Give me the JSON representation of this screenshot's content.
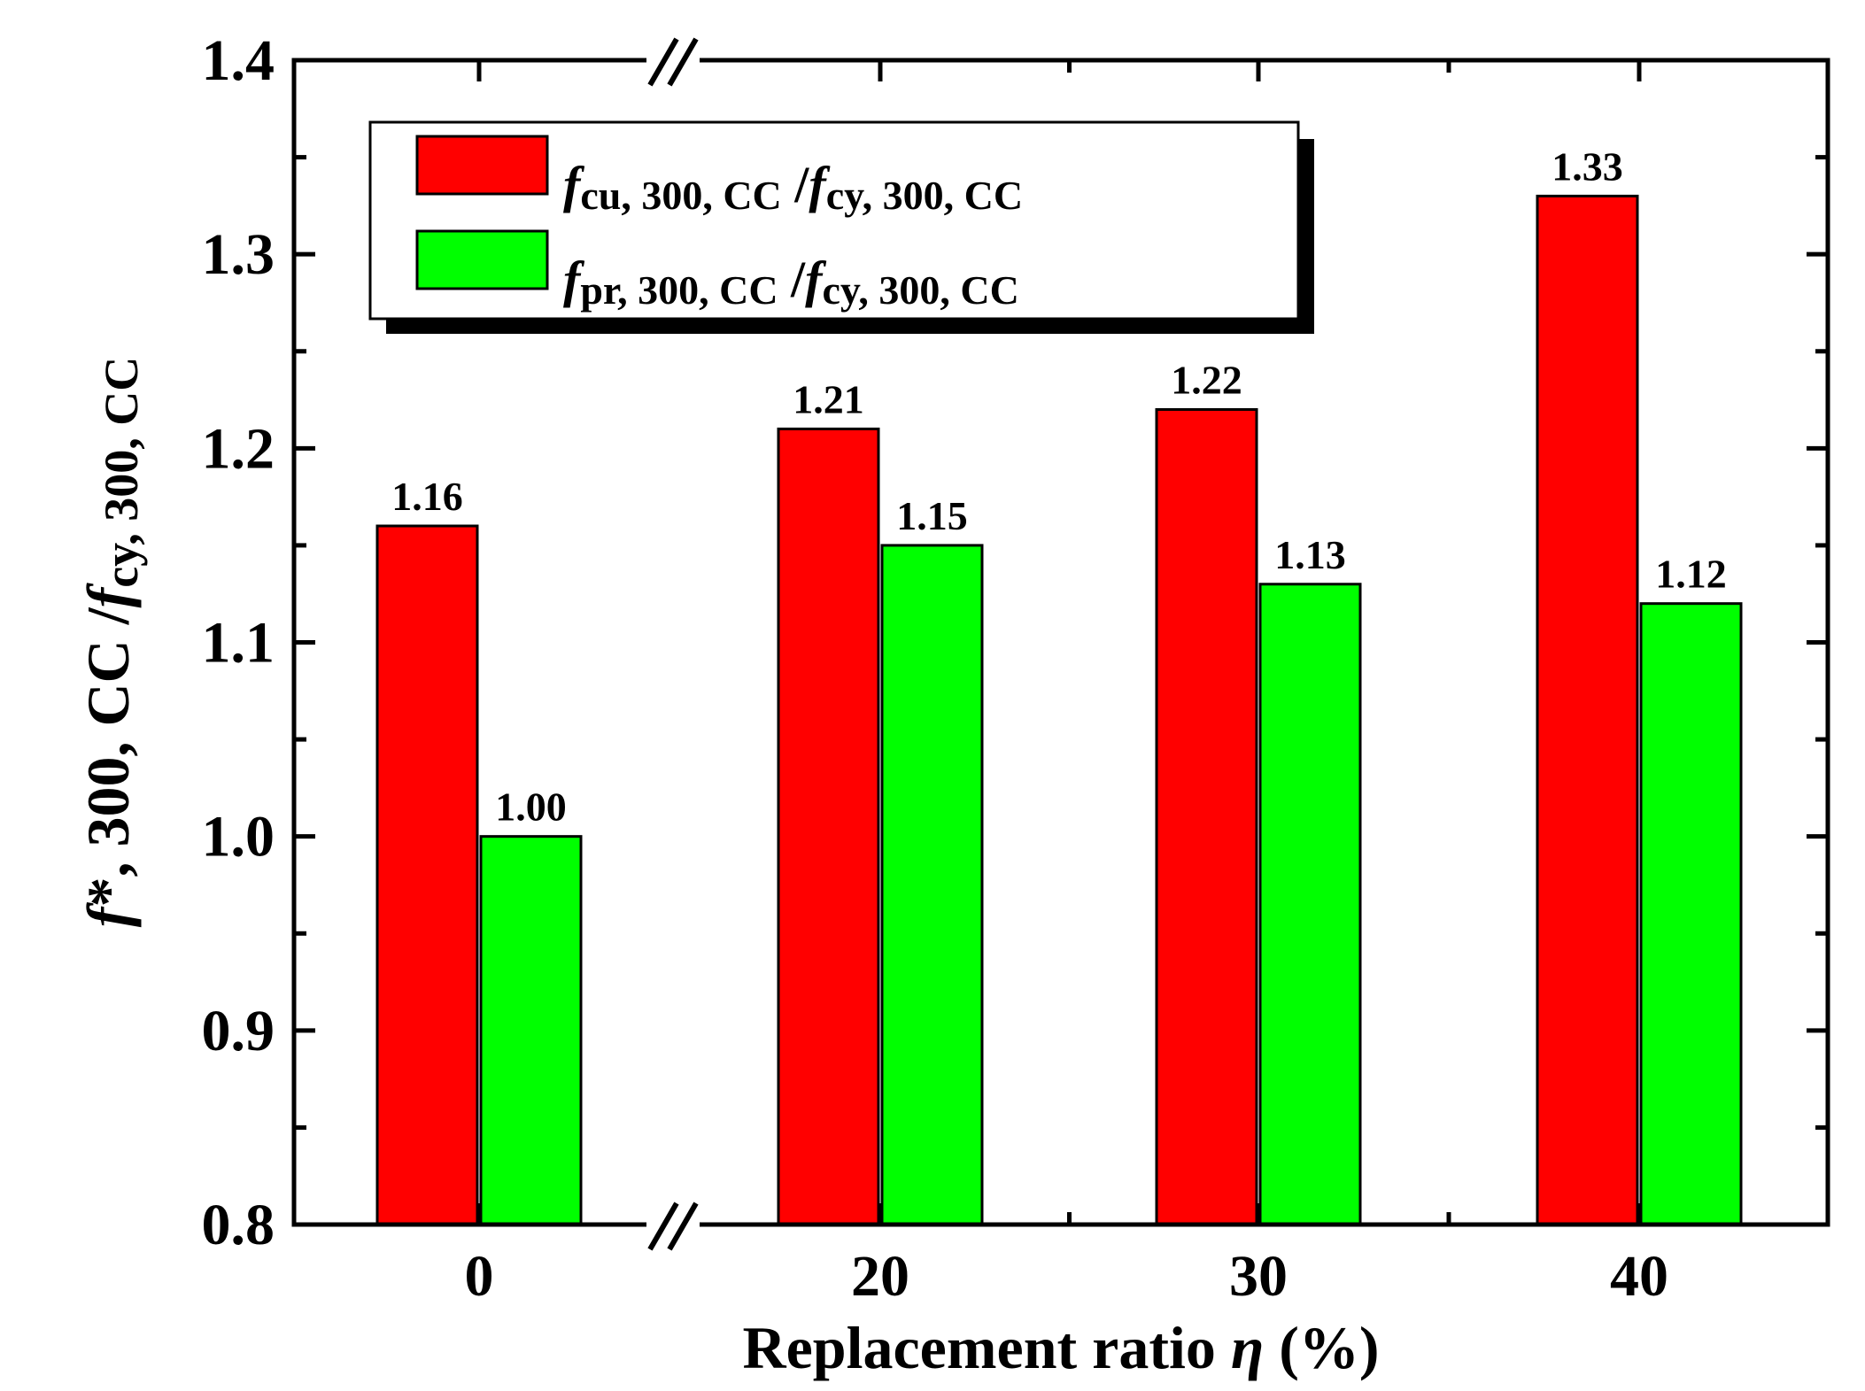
{
  "chart_data": {
    "type": "bar",
    "categories": [
      "0",
      "20",
      "30",
      "40"
    ],
    "series": [
      {
        "name": "fcu, 300, CC / fcy, 300, CC",
        "legend_main": "f",
        "legend_sub1": "cu, 300, CC",
        "legend_slash": " /",
        "legend_main2": "f",
        "legend_sub2": "cy, 300, CC",
        "color": "#ff0000",
        "values": [
          1.16,
          1.21,
          1.22,
          1.33
        ],
        "labels": [
          "1.16",
          "1.21",
          "1.22",
          "1.33"
        ]
      },
      {
        "name": "fpr, 300, CC / fcy, 300, CC",
        "legend_main": "f",
        "legend_sub1": "pr, 300, CC",
        "legend_slash": " /",
        "legend_main2": "f",
        "legend_sub2": "cy, 300, CC",
        "color": "#00ff00",
        "values": [
          1.0,
          1.15,
          1.13,
          1.12
        ],
        "labels": [
          "1.00",
          "1.15",
          "1.13",
          "1.12"
        ]
      }
    ],
    "ylim": [
      0.8,
      1.4
    ],
    "yticks": [
      "0.8",
      "0.9",
      "1.0",
      "1.1",
      "1.2",
      "1.3",
      "1.4"
    ],
    "xlabel": {
      "text1": "Replacement ratio ",
      "symbol": "η",
      "text2": " (%)"
    },
    "ylabel": {
      "f1": "f",
      "sub1": "*, 300, CC",
      "slash": " /",
      "f2": "f",
      "sub2": "cy, 300, CC"
    },
    "axis_break": "//",
    "legend_position": "top-left",
    "grid": false
  }
}
